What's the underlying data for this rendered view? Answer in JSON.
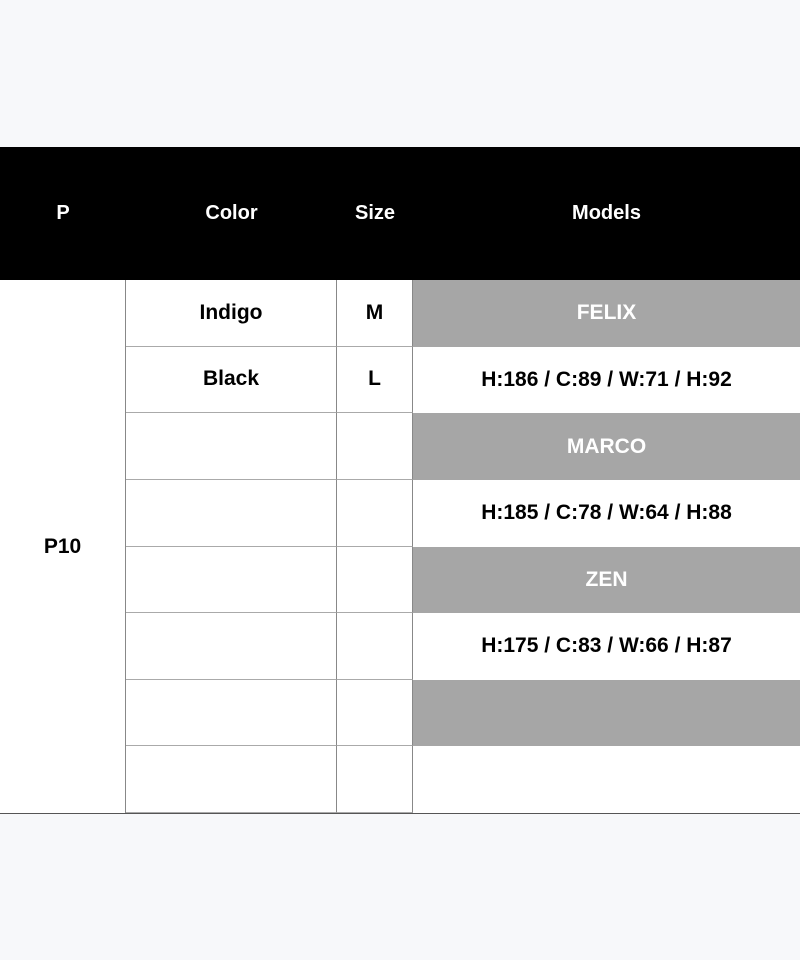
{
  "header": {
    "p": "P",
    "color": "Color",
    "size": "Size",
    "models": "Models"
  },
  "product": "P10",
  "rows": [
    {
      "color": "Indigo",
      "size": "M",
      "model": "FELIX",
      "model_style": "name"
    },
    {
      "color": "Black",
      "size": "L",
      "model": "H:186 / C:89 / W:71 / H:92",
      "model_style": "measure"
    },
    {
      "color": "",
      "size": "",
      "model": "MARCO",
      "model_style": "name"
    },
    {
      "color": "",
      "size": "",
      "model": "H:185 / C:78 / W:64 / H:88",
      "model_style": "measure"
    },
    {
      "color": "",
      "size": "",
      "model": "ZEN",
      "model_style": "name"
    },
    {
      "color": "",
      "size": "",
      "model": "H:175 / C:83 / W:66 / H:87",
      "model_style": "measure"
    },
    {
      "color": "",
      "size": "",
      "model": "",
      "model_style": "name"
    },
    {
      "color": "",
      "size": "",
      "model": "",
      "model_style": "measure"
    }
  ],
  "colors": {
    "header_bg": "#000000",
    "name_row_bg": "#a6a6a6",
    "background": "#f7f8fa"
  }
}
